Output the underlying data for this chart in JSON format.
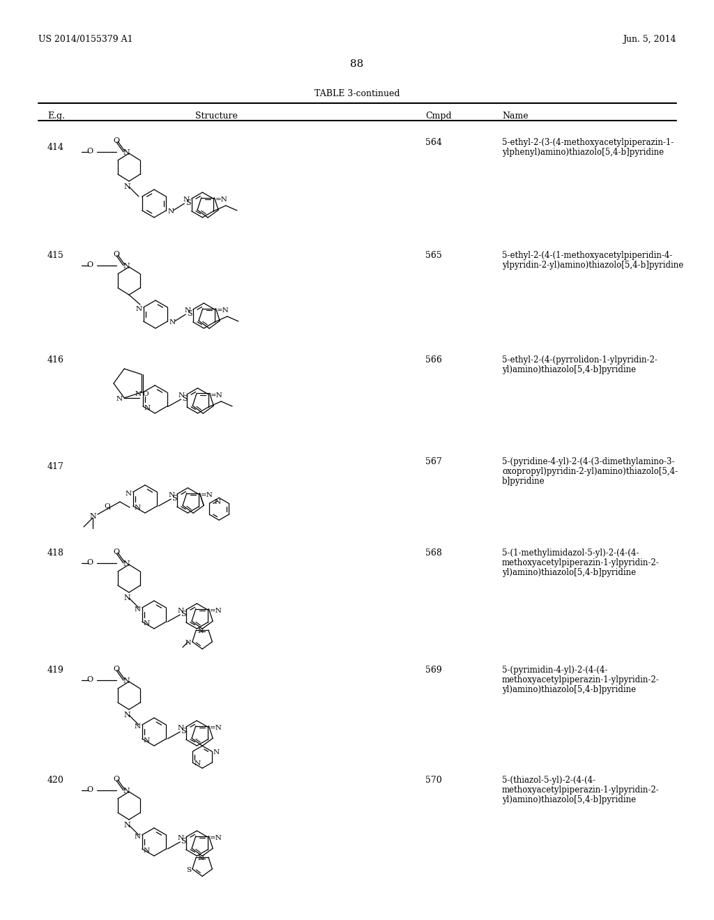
{
  "page_header_left": "US 2014/0155379 A1",
  "page_header_right": "Jun. 5, 2014",
  "page_number": "88",
  "table_title": "TABLE 3-continued",
  "col_headers": [
    "E.g.",
    "Structure",
    "Cmpd",
    "Name"
  ],
  "rows": [
    {
      "eg": "414",
      "cmpd": "564",
      "name": "5-ethyl-2-(3-(4-methoxyacetylpiperazin-1-\nylphenyl)amino)thiazolo[5,4-b]pyridine"
    },
    {
      "eg": "415",
      "cmpd": "565",
      "name": "5-ethyl-2-(4-(1-methoxyacetylpiperidin-4-\nylpyridin-2-yl)amino)thiazolo[5,4-b]pyridine"
    },
    {
      "eg": "416",
      "cmpd": "566",
      "name": "5-ethyl-2-(4-(pyrrolidon-1-ylpyridin-2-\nyl)amino)thiazolo[5,4-b]pyridine"
    },
    {
      "eg": "417",
      "cmpd": "567",
      "name": "5-(pyridine-4-yl)-2-(4-(3-dimethylamino-3-\noxopropyl)pyridin-2-yl)amino)thiazolo[5,4-\nb]pyridine"
    },
    {
      "eg": "418",
      "cmpd": "568",
      "name": "5-(1-methylimidazol-5-yl)-2-(4-(4-\nmethoxyacetylpiperazin-1-ylpyridin-2-\nyl)amino)thiazolo[5,4-b]pyridine"
    },
    {
      "eg": "419",
      "cmpd": "569",
      "name": "5-(pyrimidin-4-yl)-2-(4-(4-\nmethoxyacetylpiperazin-1-ylpyridin-2-\nyl)amino)thiazolo[5,4-b]pyridine"
    },
    {
      "eg": "420",
      "cmpd": "570",
      "name": "5-(thiazol-5-yl)-2-(4-(4-\nmethoxyacetylpiperazin-1-ylpyridin-2-\nyl)amino)thiazolo[5,4-b]pyridine"
    }
  ]
}
